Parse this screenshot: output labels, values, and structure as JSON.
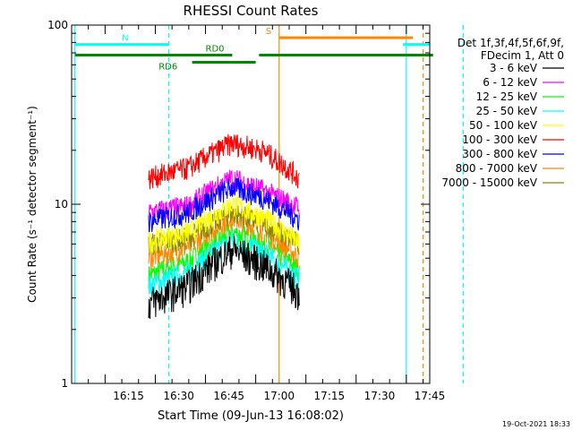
{
  "chart_data": {
    "type": "line",
    "title": "RHESSI Count Rates",
    "xlabel": "Start Time (09-Jun-13 16:08:02)",
    "ylabel": "Count Rate (s⁻¹ detector segment⁻¹)",
    "yscale": "log",
    "xlim_minutes": [
      -10,
      97
    ],
    "ylim": [
      1,
      100
    ],
    "xtick_labels": [
      "16:15",
      "16:30",
      "16:45",
      "17:00",
      "17:15",
      "17:30",
      "17:45"
    ],
    "xtick_minutes": [
      15,
      30,
      45,
      60,
      75,
      90,
      105
    ],
    "ytick_labels": [
      "1",
      "10",
      "100"
    ],
    "ytick_values": [
      1,
      10,
      100
    ],
    "x_note": "time values below are minutes after 16:08:02",
    "legend": {
      "header": [
        "Det 1f,3f,4f,5f,6f,9f,",
        "FDecim 1, Att 0"
      ],
      "placement": "right"
    },
    "series": [
      {
        "name": "3 - 6 keV",
        "color": "#000000",
        "levels": [
          2.8,
          3.5,
          5.6,
          4.6,
          3.2
        ]
      },
      {
        "name": "6 - 12 keV",
        "color": "#ff00ff",
        "levels": [
          9.0,
          9.8,
          14.0,
          12.0,
          9.5
        ]
      },
      {
        "name": "12 - 25 keV",
        "color": "#00ff00",
        "levels": [
          4.0,
          4.8,
          7.0,
          6.0,
          4.3
        ]
      },
      {
        "name": "25 - 50 keV",
        "color": "#00ffff",
        "levels": [
          3.5,
          4.2,
          6.3,
          5.4,
          3.8
        ]
      },
      {
        "name": "50 - 100 keV",
        "color": "#ffff00",
        "levels": [
          6.2,
          7.0,
          10.0,
          8.5,
          6.0
        ]
      },
      {
        "name": "100 - 300 keV",
        "color": "#ff0000",
        "levels": [
          14.0,
          16.0,
          22.0,
          20.0,
          14.0
        ]
      },
      {
        "name": "300 - 800 keV",
        "color": "#0000ff",
        "levels": [
          8.0,
          9.0,
          12.5,
          11.0,
          8.2
        ]
      },
      {
        "name": "800 - 7000 keV",
        "color": "#ff8800",
        "levels": [
          5.0,
          5.8,
          8.5,
          7.2,
          5.0
        ]
      },
      {
        "name": "7000 - 15000 keV",
        "color": "#888800",
        "levels": [
          6.0,
          6.5,
          9.0,
          7.8,
          6.0
        ]
      }
    ],
    "series_time_minutes": [
      13,
      25,
      38,
      47,
      58
    ],
    "flags": [
      {
        "label": "N",
        "color": "#00ffff",
        "y": 78,
        "segments": [
          [
            -9,
            19
          ],
          [
            89,
            97
          ]
        ]
      },
      {
        "label": "RD0",
        "color": "#008800",
        "y": 68,
        "segments": [
          [
            -9,
            38
          ],
          [
            46,
            98
          ]
        ]
      },
      {
        "label": "RD6",
        "color": "#008800",
        "y": 62,
        "segments": [
          [
            26,
            45
          ]
        ]
      },
      {
        "label": "S",
        "color": "#ff8800",
        "y": 85,
        "segments": [
          [
            52,
            92
          ]
        ]
      }
    ],
    "vlines": [
      {
        "t": -9,
        "color": "#00ffff",
        "style": "solid"
      },
      {
        "t": 19,
        "color": "#00ffff",
        "style": "dashed"
      },
      {
        "t": 52,
        "color": "#ff8800",
        "style": "solid"
      },
      {
        "t": 90,
        "color": "#00ffff",
        "style": "solid"
      },
      {
        "t": 95,
        "color": "#ff8800",
        "style": "dashed"
      },
      {
        "t": 107,
        "color": "#00ffff",
        "style": "dashed"
      }
    ],
    "grid": false
  },
  "footer_timestamp": "19-Oct-2021 18:33"
}
